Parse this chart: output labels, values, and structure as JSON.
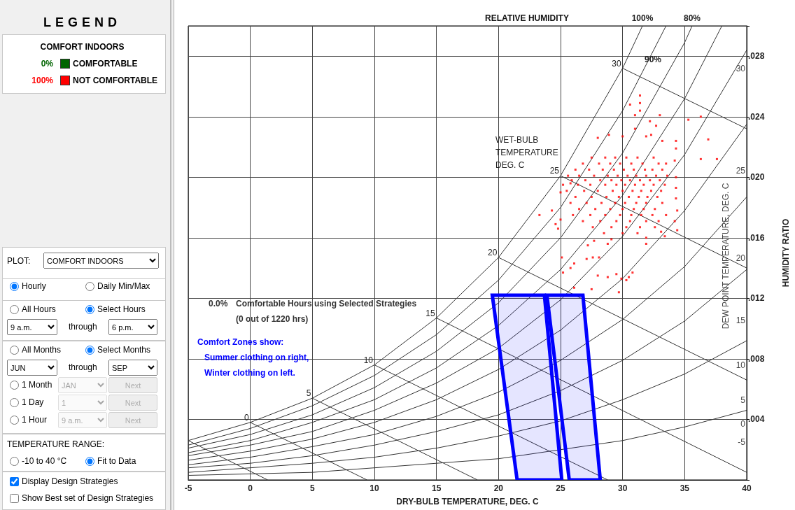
{
  "chart_data": [
    {
      "type": "other",
      "title": "LEGEND",
      "colors": [
        "#006400",
        "#ff0000"
      ],
      "annotations": [
        "COMFORT INDOORS",
        "0%",
        "COMFORTABLE",
        "100%",
        "NOT COMFORTABLE",
        "PLOT:",
        "COMFORT INDOORS",
        "Hourly",
        "Daily Min/Max",
        "All Hours",
        "Select Hours",
        "9 a.m.",
        "through",
        "6 p.m.",
        "All Months",
        "Select Months",
        "JUN",
        "through",
        "SEP",
        "1 Month",
        "JAN",
        "Next",
        "1 Day",
        "1",
        "Next",
        "1 Hour",
        "9 a.m.",
        "Next",
        "TEMPERATURE RANGE:",
        "-10 to 40 °C",
        "Fit to Data",
        "Display Design Strategies",
        "Show Best set of Design Strategies"
      ]
    },
    {
      "type": "scatter",
      "xlabel": "DRY-BULB TEMPERATURE, DEG. C",
      "ylabel": "HUMIDITY RATIO",
      "xlim": [
        -5,
        40
      ],
      "xticks": [
        -5,
        0,
        5,
        10,
        15,
        20,
        25,
        30,
        35,
        40
      ],
      "ylim": [
        0,
        0.03
      ],
      "yticks": [
        {
          "value": 0.004,
          "label": ".004"
        },
        {
          "value": 0.008,
          "label": ".008"
        },
        {
          "value": 0.012,
          "label": ".012"
        },
        {
          "value": 0.016,
          "label": ".016"
        },
        {
          "value": 0.02,
          "label": ".020"
        },
        {
          "value": 0.024,
          "label": ".024"
        },
        {
          "value": 0.028,
          "label": ".028"
        }
      ],
      "grid": true,
      "marker": "none",
      "annotations": [
        "RELATIVE HUMIDITY",
        {
          "text": "100%",
          "x": 31.6,
          "y": 0.03
        },
        {
          "text": "80%",
          "x": 35.6,
          "y": 0.03
        },
        "90%",
        {
          "text": "0",
          "x": 0,
          "y": 0.0038
        },
        {
          "text": "5",
          "x": 5,
          "y": 0.0054
        },
        {
          "text": "10",
          "x": 10,
          "y": 0.0076
        },
        {
          "text": "15",
          "x": 15,
          "y": 0.0107
        },
        {
          "text": "20",
          "x": 20,
          "y": 0.0147
        },
        {
          "text": "25",
          "x": 25,
          "y": 0.0201
        },
        {
          "text": "30",
          "x": 30,
          "y": 0.0272
        },
        "WET-BULB",
        "TEMPERATURE",
        "DEG. C",
        "0.0%",
        "Comfortable Hours using Selected Strategies",
        "(0 out of 1220 hrs)",
        "Comfort Zones show:",
        "Summer clothing on right,",
        "Winter clothing on left.",
        "DEW POINT TEMPERATURE, DEG. C",
        "-5",
        "0",
        "5",
        "10",
        "15",
        "20",
        "25",
        "30"
      ],
      "series": [
        {
          "type": "line",
          "color": "#333333",
          "x": [
            -5,
            0,
            5,
            10,
            15,
            20,
            25,
            30,
            31.6
          ],
          "values": [
            0.0026,
            0.0038,
            0.0054,
            0.0076,
            0.0107,
            0.0147,
            0.0201,
            0.0272,
            0.03
          ]
        },
        {
          "type": "line",
          "color": "#333333",
          "x": [
            -5,
            0,
            5,
            10,
            15,
            20,
            25,
            30,
            33.5
          ],
          "values": [
            0.0023,
            0.0034,
            0.0049,
            0.0069,
            0.0096,
            0.0132,
            0.018,
            0.0244,
            0.03
          ]
        },
        {
          "type": "line",
          "color": "#333333",
          "x": [
            -5,
            0,
            5,
            10,
            15,
            20,
            25,
            30,
            35,
            35.6
          ],
          "values": [
            0.0021,
            0.003,
            0.0043,
            0.0061,
            0.0085,
            0.0117,
            0.016,
            0.0216,
            0.0289,
            0.03
          ]
        },
        {
          "type": "line",
          "color": "#333333",
          "x": [
            -5,
            0,
            5,
            10,
            15,
            20,
            25,
            30,
            35,
            38
          ],
          "values": [
            0.0018,
            0.0026,
            0.0038,
            0.0053,
            0.0074,
            0.0102,
            0.0139,
            0.0188,
            0.0252,
            0.03
          ]
        },
        {
          "type": "line",
          "color": "#333333",
          "x": [
            -5,
            0,
            5,
            10,
            15,
            20,
            25,
            30,
            35,
            40
          ],
          "values": [
            0.0016,
            0.0023,
            0.0032,
            0.0046,
            0.0064,
            0.0087,
            0.0119,
            0.0161,
            0.0215,
            0.0284
          ]
        },
        {
          "type": "line",
          "color": "#333333",
          "x": [
            -5,
            0,
            5,
            10,
            15,
            20,
            25,
            30,
            35,
            40
          ],
          "values": [
            0.0013,
            0.0019,
            0.0027,
            0.0038,
            0.0053,
            0.0073,
            0.0099,
            0.0133,
            0.0178,
            0.0235
          ]
        },
        {
          "type": "line",
          "color": "#333333",
          "x": [
            -5,
            0,
            5,
            10,
            15,
            20,
            25,
            30,
            35,
            40
          ],
          "values": [
            0.001,
            0.0015,
            0.0022,
            0.003,
            0.0042,
            0.0058,
            0.0079,
            0.0106,
            0.0141,
            0.0187
          ]
        },
        {
          "type": "line",
          "color": "#333333",
          "x": [
            -5,
            0,
            5,
            10,
            15,
            20,
            25,
            30,
            35,
            40
          ],
          "values": [
            0.0008,
            0.0011,
            0.0016,
            0.0023,
            0.0032,
            0.0043,
            0.0059,
            0.0079,
            0.0105,
            0.0139
          ]
        },
        {
          "type": "line",
          "color": "#333333",
          "x": [
            -5,
            0,
            5,
            10,
            15,
            20,
            25,
            30,
            35,
            40
          ],
          "values": [
            0.0005,
            0.0008,
            0.0011,
            0.0015,
            0.0021,
            0.0029,
            0.0039,
            0.0053,
            0.007,
            0.0092
          ]
        },
        {
          "type": "line",
          "color": "#333333",
          "x": [
            -5,
            0,
            5,
            10,
            15,
            20,
            25,
            30,
            35,
            40
          ],
          "values": [
            0.0003,
            0.0004,
            0.0005,
            0.0008,
            0.0011,
            0.0014,
            0.002,
            0.0026,
            0.0035,
            0.0046
          ]
        },
        {
          "type": "line",
          "color": "#333333",
          "x": [
            -5,
            1.4
          ],
          "values": [
            0.0026,
            0
          ]
        },
        {
          "type": "line",
          "color": "#333333",
          "x": [
            0,
            9.4
          ],
          "values": [
            0.0038,
            0
          ]
        },
        {
          "type": "line",
          "color": "#333333",
          "x": [
            5,
            18.3
          ],
          "values": [
            0.0054,
            0
          ]
        },
        {
          "type": "line",
          "color": "#333333",
          "x": [
            10,
            28.8
          ],
          "values": [
            0.0076,
            0
          ]
        },
        {
          "type": "line",
          "color": "#333333",
          "x": [
            15,
            40
          ],
          "values": [
            0.0107,
            0.0005
          ]
        },
        {
          "type": "line",
          "color": "#333333",
          "x": [
            20,
            40
          ],
          "values": [
            0.0147,
            0.0066
          ]
        },
        {
          "type": "line",
          "color": "#333333",
          "x": [
            25,
            40
          ],
          "values": [
            0.0201,
            0.014
          ]
        },
        {
          "type": "line",
          "color": "#333333",
          "x": [
            30,
            40
          ],
          "values": [
            0.0272,
            0.0232
          ]
        },
        {
          "type": "area",
          "color": "#0000ff",
          "x": [
            19.5,
            23.7,
            25.1,
            21.5,
            19.5
          ],
          "values": [
            0.0122,
            0.0122,
            0,
            0,
            0.0122
          ]
        },
        {
          "type": "area",
          "color": "#0000ff",
          "x": [
            23.9,
            26.8,
            28.2,
            25.7,
            23.9
          ],
          "values": [
            0.0122,
            0.0122,
            0,
            0,
            0.0122
          ]
        },
        {
          "type": "scatter",
          "color": "#ff0000",
          "marker": "square",
          "x": [
            31.4,
            31.4,
            31.4,
            30.6,
            31.0,
            33.0,
            32.2,
            32.7,
            35.3,
            36.3,
            31.0,
            36.9,
            36.3,
            37.6,
            34.3,
            33.2,
            32.3,
            28.0,
            28.9,
            30.0,
            31.9,
            27.7,
            28.8,
            29.1,
            27.2,
            25.1,
            26.1,
            27.1,
            27.6,
            28.1,
            25.8,
            25.2,
            28.0,
            28.8,
            29.5,
            29.9,
            30.3,
            30.8,
            30.5,
            27.5,
            29.7,
            26.1,
            31.9,
            31.9,
            33.4,
            33.1,
            34.4,
            34.2,
            34.4,
            34.3,
            34.3,
            34.3,
            34.2,
            34.3,
            24.3,
            23.3,
            24.6,
            24.8,
            25.0,
            25.0,
            25.2,
            25.8,
            27.5,
            28.6,
            29.4,
            30.3,
            31.2,
            32.5,
            26.8,
            28.1,
            29.0,
            29.8,
            30.7,
            31.6,
            32.9,
            33.5,
            26.2,
            27.3,
            28.4,
            29.3,
            30.1,
            30.9,
            31.8,
            32.4,
            33.2,
            25.6,
            26.5,
            27.7,
            28.8,
            29.6,
            30.4,
            31.1,
            31.9,
            32.7,
            33.6,
            25.9,
            27.0,
            28.2,
            29.1,
            29.9,
            30.6,
            31.4,
            32.2,
            33.0,
            26.4,
            27.4,
            28.6,
            29.5,
            30.2,
            31.0,
            31.7,
            32.5,
            33.4,
            25.5,
            26.9,
            28.0,
            29.2,
            30.0,
            30.8,
            31.5,
            32.3,
            33.1,
            26.2,
            27.5,
            28.7,
            29.7,
            30.5,
            31.3,
            32.0,
            32.8,
            25.8,
            27.1,
            28.3,
            29.4,
            30.2,
            31.1,
            31.9,
            33.2,
            26.5,
            27.8,
            29.0,
            30.0,
            30.9,
            31.7,
            32.6,
            26.0,
            27.4,
            28.6,
            29.8,
            30.7,
            31.5,
            32.4,
            33.5,
            26.8,
            28.2,
            29.5,
            30.6,
            31.9,
            32.9,
            27.6,
            29.1,
            30.3,
            31.4,
            32.6,
            28.5,
            30.0,
            31.2
          ],
          "values": [
            0.0254,
            0.0249,
            0.0244,
            0.0248,
            0.0241,
            0.0241,
            0.0237,
            0.0234,
            0.0238,
            0.024,
            0.0232,
            0.0225,
            0.0212,
            0.0212,
            0.0224,
            0.0224,
            0.0228,
            0.0226,
            0.0228,
            0.0227,
            0.0227,
            0.0158,
            0.0156,
            0.0159,
            0.0155,
            0.0147,
            0.0143,
            0.0146,
            0.0147,
            0.0147,
            0.014,
            0.0137,
            0.0135,
            0.0134,
            0.0136,
            0.0133,
            0.0132,
            0.0137,
            0.0134,
            0.0126,
            0.0124,
            0.0127,
            0.016,
            0.0156,
            0.0161,
            0.0164,
            0.0165,
            0.0171,
            0.0178,
            0.0186,
            0.0193,
            0.02,
            0.0211,
            0.0219,
            0.0178,
            0.0175,
            0.0169,
            0.0166,
            0.0172,
            0.019,
            0.0195,
            0.0196,
            0.0213,
            0.0213,
            0.0213,
            0.0213,
            0.0213,
            0.0213,
            0.0209,
            0.0209,
            0.0209,
            0.0209,
            0.0209,
            0.0209,
            0.0209,
            0.0209,
            0.0205,
            0.0205,
            0.0205,
            0.0205,
            0.0205,
            0.0205,
            0.0205,
            0.0205,
            0.0205,
            0.0201,
            0.0201,
            0.0201,
            0.0201,
            0.0201,
            0.0201,
            0.0201,
            0.0201,
            0.0201,
            0.0201,
            0.0198,
            0.0198,
            0.0198,
            0.0198,
            0.0198,
            0.0198,
            0.0198,
            0.0198,
            0.0198,
            0.0195,
            0.0195,
            0.0195,
            0.0195,
            0.0195,
            0.0195,
            0.0195,
            0.0195,
            0.0195,
            0.0191,
            0.0191,
            0.0191,
            0.0191,
            0.0191,
            0.0191,
            0.0191,
            0.0191,
            0.0191,
            0.0187,
            0.0187,
            0.0187,
            0.0187,
            0.0187,
            0.0187,
            0.0187,
            0.0187,
            0.0183,
            0.0183,
            0.0183,
            0.0183,
            0.0183,
            0.0183,
            0.0183,
            0.0183,
            0.0179,
            0.0179,
            0.0179,
            0.0179,
            0.0179,
            0.0179,
            0.0179,
            0.0175,
            0.0175,
            0.0175,
            0.0175,
            0.0175,
            0.0175,
            0.0175,
            0.0175,
            0.0171,
            0.0171,
            0.0171,
            0.0171,
            0.0171,
            0.0171,
            0.0167,
            0.0167,
            0.0167,
            0.0167,
            0.0167,
            0.0163,
            0.0163,
            0.0163
          ]
        }
      ]
    }
  ]
}
